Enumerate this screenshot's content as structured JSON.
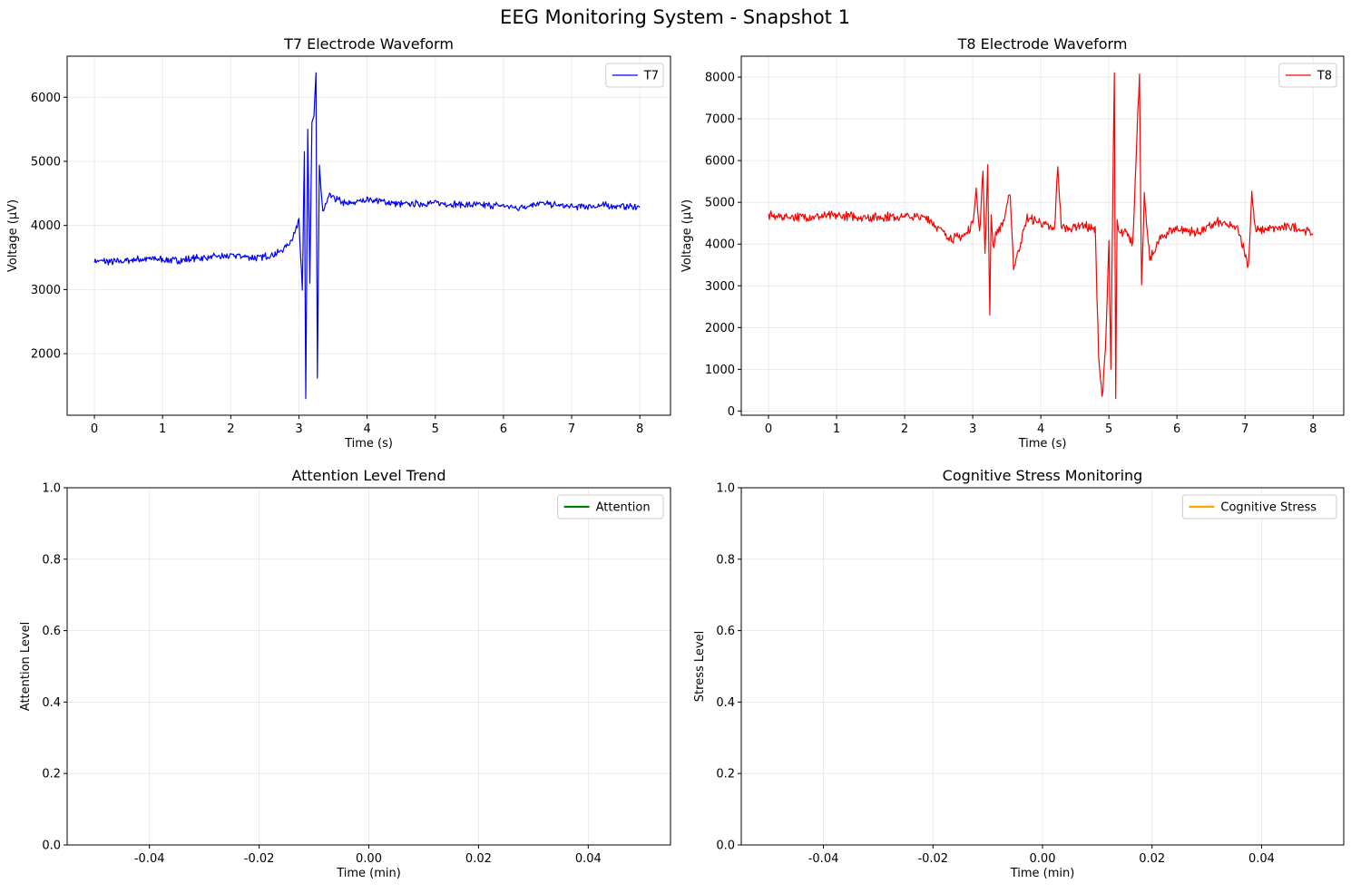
{
  "figure": {
    "title": "EEG Monitoring System - Snapshot 1"
  },
  "chart_data": [
    {
      "type": "line",
      "title": "T7 Electrode Waveform",
      "xlabel": "Time (s)",
      "ylabel": "Voltage (µV)",
      "xlim": [
        -0.4,
        8.45
      ],
      "ylim": [
        1040,
        6640
      ],
      "xticks": [
        0,
        1,
        2,
        3,
        4,
        5,
        6,
        7,
        8
      ],
      "yticks": [
        2000,
        3000,
        4000,
        5000,
        6000
      ],
      "grid": true,
      "legend_position": "top-right",
      "series": [
        {
          "name": "T7",
          "color": "#0000ff",
          "x": [
            0,
            0.3,
            0.6,
            0.9,
            1.2,
            1.5,
            1.8,
            2.1,
            2.4,
            2.7,
            2.85,
            2.95,
            3.0,
            3.05,
            3.08,
            3.1,
            3.13,
            3.16,
            3.19,
            3.22,
            3.25,
            3.27,
            3.3,
            3.35,
            3.45,
            3.7,
            4.0,
            4.5,
            5.0,
            5.5,
            6.0,
            6.2,
            6.5,
            7.0,
            7.5,
            8.0
          ],
          "y": [
            3440,
            3420,
            3460,
            3470,
            3440,
            3480,
            3500,
            3520,
            3480,
            3560,
            3700,
            3900,
            4100,
            3000,
            5150,
            1300,
            5450,
            3100,
            5550,
            5700,
            6380,
            1620,
            4900,
            4200,
            4450,
            4320,
            4400,
            4320,
            4340,
            4310,
            4300,
            4260,
            4340,
            4280,
            4300,
            4280
          ],
          "noise": 45
        }
      ]
    },
    {
      "type": "line",
      "title": "T8 Electrode Waveform",
      "xlabel": "Time (s)",
      "ylabel": "Voltage (µV)",
      "xlim": [
        -0.4,
        8.45
      ],
      "ylim": [
        -100,
        8500
      ],
      "xticks": [
        0,
        1,
        2,
        3,
        4,
        5,
        6,
        7,
        8
      ],
      "yticks": [
        0,
        1000,
        2000,
        3000,
        4000,
        5000,
        6000,
        7000,
        8000
      ],
      "grid": true,
      "legend_position": "top-right",
      "series": [
        {
          "name": "T8",
          "color": "#ff0000",
          "x": [
            0,
            0.5,
            1.0,
            1.5,
            2.0,
            2.35,
            2.5,
            2.7,
            2.9,
            3.0,
            3.05,
            3.1,
            3.15,
            3.18,
            3.22,
            3.25,
            3.27,
            3.3,
            3.35,
            3.45,
            3.55,
            3.6,
            3.8,
            4.0,
            4.2,
            4.25,
            4.3,
            4.4,
            4.6,
            4.8,
            4.85,
            4.9,
            4.95,
            5.0,
            5.03,
            5.06,
            5.08,
            5.1,
            5.12,
            5.15,
            5.25,
            5.35,
            5.45,
            5.48,
            5.52,
            5.6,
            5.75,
            5.9,
            6.0,
            6.3,
            6.6,
            6.9,
            7.05,
            7.1,
            7.15,
            7.4,
            7.7,
            8.0
          ],
          "y": [
            4650,
            4630,
            4660,
            4620,
            4650,
            4600,
            4350,
            4100,
            4200,
            4500,
            5300,
            4200,
            5700,
            3700,
            5900,
            2300,
            4700,
            3900,
            4250,
            4500,
            5200,
            3400,
            4600,
            4500,
            4300,
            5850,
            4400,
            4350,
            4450,
            4300,
            1300,
            300,
            1400,
            4000,
            1000,
            5600,
            8100,
            300,
            4500,
            4200,
            4300,
            4000,
            8100,
            2900,
            5100,
            3600,
            4100,
            4300,
            4350,
            4250,
            4500,
            4350,
            3450,
            5200,
            4300,
            4350,
            4400,
            4250
          ],
          "noise": 90
        }
      ]
    },
    {
      "type": "line",
      "title": "Attention Level Trend",
      "xlabel": "Time (min)",
      "ylabel": "Attention Level",
      "xlim": [
        -0.055,
        0.055
      ],
      "ylim": [
        0,
        1
      ],
      "xticks": [
        -0.04,
        -0.02,
        0.0,
        0.02,
        0.04
      ],
      "xticklabels": [
        "-0.04",
        "-0.02",
        "0.00",
        "0.02",
        "0.04"
      ],
      "yticks": [
        0.0,
        0.2,
        0.4,
        0.6,
        0.8,
        1.0
      ],
      "yticklabels": [
        "0.0",
        "0.2",
        "0.4",
        "0.6",
        "0.8",
        "1.0"
      ],
      "grid": true,
      "legend_position": "top-right",
      "series": [
        {
          "name": "Attention",
          "color": "#008000",
          "x": [],
          "y": []
        }
      ]
    },
    {
      "type": "line",
      "title": "Cognitive Stress Monitoring",
      "xlabel": "Time (min)",
      "ylabel": "Stress Level",
      "xlim": [
        -0.055,
        0.055
      ],
      "ylim": [
        0,
        1
      ],
      "xticks": [
        -0.04,
        -0.02,
        0.0,
        0.02,
        0.04
      ],
      "xticklabels": [
        "-0.04",
        "-0.02",
        "0.00",
        "0.02",
        "0.04"
      ],
      "yticks": [
        0.0,
        0.2,
        0.4,
        0.6,
        0.8,
        1.0
      ],
      "yticklabels": [
        "0.0",
        "0.2",
        "0.4",
        "0.6",
        "0.8",
        "1.0"
      ],
      "grid": true,
      "legend_position": "top-right",
      "series": [
        {
          "name": "Cognitive Stress",
          "color": "#ffa500",
          "x": [],
          "y": []
        }
      ]
    }
  ]
}
